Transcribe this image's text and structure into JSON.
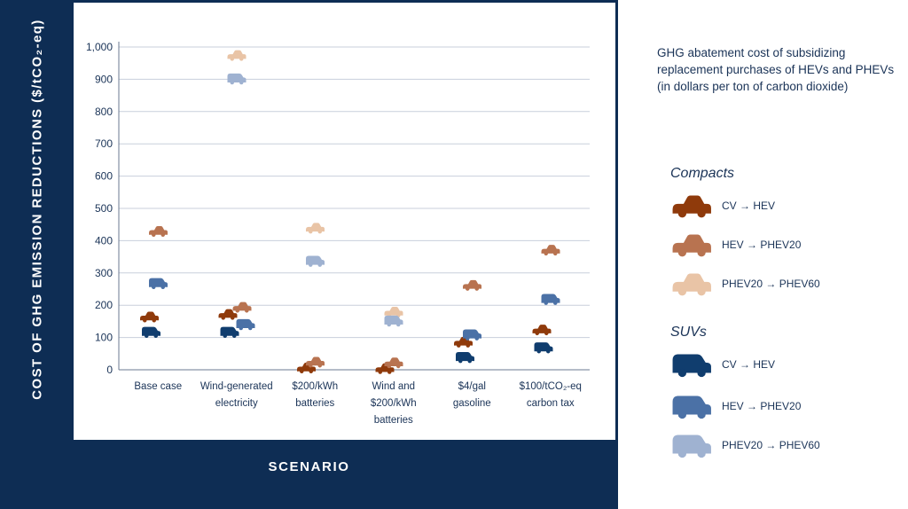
{
  "chart_data": {
    "type": "scatter",
    "title": "GHG abatement cost of subsidizing replacement purchases of HEVs and PHEVs (in dollars per ton of carbon dioxide)",
    "xlabel": "SCENARIO",
    "ylabel": "COST OF GHG EMISSION REDUCTIONS ($/tCO₂-eq)",
    "ylim": [
      0,
      1000
    ],
    "yticks": [
      0,
      100,
      200,
      300,
      400,
      500,
      600,
      700,
      800,
      900,
      1000
    ],
    "yticks_labels": [
      "0",
      "100",
      "200",
      "300",
      "400",
      "500",
      "600",
      "700",
      "800",
      "900",
      "1,000"
    ],
    "grid": true,
    "legend_position": "right",
    "categories": [
      [
        "Base case"
      ],
      [
        "Wind-generated",
        "electricity"
      ],
      [
        "$200/kWh",
        "batteries"
      ],
      [
        "Wind and",
        "$200/kWh",
        "batteries"
      ],
      [
        "$4/gal",
        "gasoline"
      ],
      [
        "$100/tCO₂-eq",
        "carbon tax"
      ]
    ],
    "legend_groups": [
      "Compacts",
      "SUVs"
    ],
    "series": [
      {
        "group": "Compacts",
        "name": "CV → HEV",
        "color": "#8f3a0b",
        "values": [
          160,
          168,
          2,
          0,
          82,
          120
        ]
      },
      {
        "group": "Compacts",
        "name": "HEV → PHEV20",
        "color": "#b87350",
        "values": [
          425,
          190,
          20,
          18,
          258,
          367
        ]
      },
      {
        "group": "Compacts",
        "name": "PHEV20 → PHEV60",
        "color": "#e9c4a6",
        "values": [
          null,
          970,
          435,
          175,
          null,
          null
        ]
      },
      {
        "group": "SUVs",
        "name": "CV → HEV",
        "color": "#103d6e",
        "values": [
          113,
          113,
          null,
          null,
          35,
          65
        ]
      },
      {
        "group": "SUVs",
        "name": "HEV → PHEV20",
        "color": "#4b71a6",
        "values": [
          264,
          137,
          null,
          null,
          105,
          215
        ]
      },
      {
        "group": "SUVs",
        "name": "PHEV20 → PHEV60",
        "color": "#9fb2d1",
        "values": [
          null,
          898,
          333,
          148,
          null,
          null
        ]
      }
    ]
  }
}
